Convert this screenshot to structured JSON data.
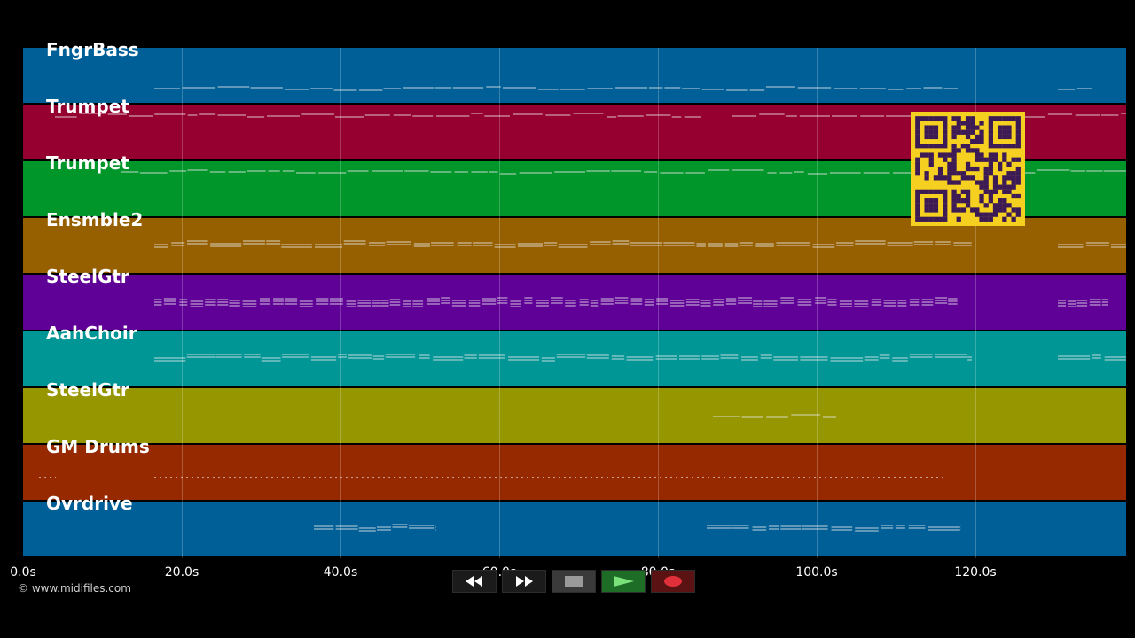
{
  "tracks": [
    {
      "name": "FngrBass",
      "color": "#005f96"
    },
    {
      "name": "Trumpet",
      "color": "#960031"
    },
    {
      "name": "Trumpet",
      "color": "#009629"
    },
    {
      "name": "Ensmble2",
      "color": "#966000"
    },
    {
      "name": "SteelGtr",
      "color": "#5f0096"
    },
    {
      "name": "AahChoir",
      "color": "#009696"
    },
    {
      "name": "SteelGtr",
      "color": "#969600"
    },
    {
      "name": "GM Drums",
      "color": "#962900"
    },
    {
      "name": "Ovrdrive",
      "color": "#005f96"
    }
  ],
  "timeline": {
    "ticks": [
      "0.0s",
      "20.0s",
      "40.0s",
      "60.0s",
      "80.0s",
      "100.0s",
      "120.0s"
    ]
  },
  "transport": {
    "buttons": [
      {
        "name": "rewind-button",
        "icon": "rewind-icon"
      },
      {
        "name": "fast-forward-button",
        "icon": "fast-forward-icon"
      },
      {
        "name": "stop-button",
        "icon": "stop-icon"
      },
      {
        "name": "play-button",
        "icon": "play-icon"
      },
      {
        "name": "record-button",
        "icon": "record-icon"
      }
    ]
  },
  "credit": "© www.midifiles.com",
  "qr_code": {
    "icon": "qr-code-icon",
    "colors": {
      "background": "#f5d020",
      "modules": "#3c1a55"
    }
  }
}
